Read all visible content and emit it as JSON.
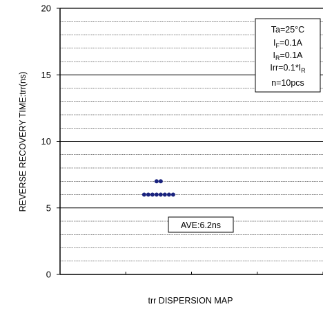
{
  "chart_data": {
    "type": "scatter",
    "ylabel": "REVERSE RECOVERY TIME:trr(ns)",
    "xlabel": "trr DISPERSION MAP",
    "ylim": [
      0,
      20
    ],
    "yticks": [
      0,
      5,
      10,
      15,
      20
    ],
    "grid": true,
    "x_category": 1.5,
    "points": [
      7,
      7,
      6,
      6,
      6,
      6,
      6,
      6,
      6,
      6
    ],
    "marker_color": "#1a237e",
    "conditions": {
      "ta": "Ta=25°C",
      "if_main": "I",
      "if_sub": "F",
      "if_val": "=0.1A",
      "ir_main": "I",
      "ir_sub": "R",
      "ir_val": "=0.1A",
      "irr_main": "Irr=0.1*I",
      "irr_sub": "R",
      "n": "n=10pcs"
    },
    "average_label": "AVE:6.2ns"
  }
}
